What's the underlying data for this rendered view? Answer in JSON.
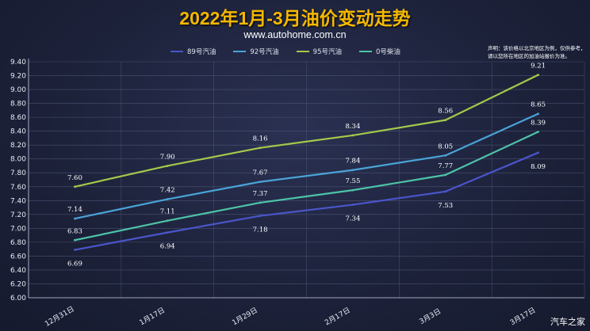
{
  "title": "2022年1月-3月油价变动走势",
  "subtitle": "www.autohome.com.cn",
  "disclaimer": "声明：该价格以北京地区为例，仅供参考，请以您所在地区的加油站报价为准。",
  "watermark": "汽车之家",
  "chart_data": {
    "type": "line",
    "categories": [
      "12月31日",
      "1月17日",
      "1月29日",
      "2月17日",
      "3月3日",
      "3月17日"
    ],
    "ylim": [
      6.0,
      9.4
    ],
    "yticks": [
      "6.00",
      "6.20",
      "6.40",
      "6.60",
      "6.80",
      "7.00",
      "7.20",
      "7.40",
      "7.60",
      "7.80",
      "8.00",
      "8.20",
      "8.40",
      "8.60",
      "8.80",
      "9.00",
      "9.20",
      "9.40"
    ],
    "grid": true,
    "legend_position": "top",
    "series": [
      {
        "name": "89号汽油",
        "color": "#4a55c9",
        "values": [
          6.69,
          6.94,
          7.18,
          7.34,
          7.53,
          8.09
        ],
        "label_pos": "below"
      },
      {
        "name": "92号汽油",
        "color": "#4aa3d8",
        "values": [
          7.14,
          7.42,
          7.67,
          7.84,
          8.05,
          8.65
        ],
        "label_pos": "above"
      },
      {
        "name": "95号汽油",
        "color": "#a4c94a",
        "values": [
          7.6,
          7.9,
          8.16,
          8.34,
          8.56,
          9.21
        ],
        "label_pos": "above"
      },
      {
        "name": "0号柴油",
        "color": "#4ec3a8",
        "values": [
          6.83,
          7.11,
          7.37,
          7.55,
          7.77,
          8.39
        ],
        "label_pos": "above"
      }
    ]
  }
}
